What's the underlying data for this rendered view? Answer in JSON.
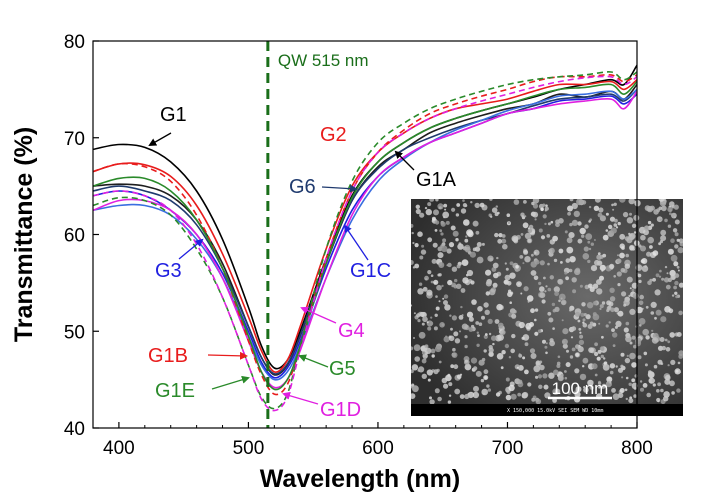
{
  "chart_data": {
    "type": "line",
    "title": "",
    "xlabel": "Wavelength (nm)",
    "ylabel": "Transmittance (%)",
    "xlim": [
      380,
      800
    ],
    "ylim": [
      40,
      80
    ],
    "x_ticks": [
      400,
      500,
      600,
      700,
      800
    ],
    "y_ticks": [
      40,
      50,
      60,
      70,
      80
    ],
    "grid": false,
    "legend": "none",
    "reference_line": {
      "x": 515,
      "label": "QW 515 nm",
      "color": "#1a6e1a",
      "style": "dashed"
    },
    "series": [
      {
        "name": "G1",
        "color": "#000000",
        "dashed": false,
        "x": [
          380,
          400,
          420,
          440,
          460,
          480,
          500,
          510,
          520,
          530,
          540,
          560,
          580,
          600,
          620,
          640,
          660,
          680,
          700,
          720,
          740,
          760,
          780,
          790,
          800
        ],
        "y": [
          68.8,
          69.3,
          69.0,
          67.5,
          64.5,
          59.5,
          52.5,
          48.5,
          46.2,
          47.0,
          50.0,
          57.5,
          64.0,
          67.5,
          69.5,
          71.0,
          72.0,
          72.8,
          73.5,
          74.2,
          75.0,
          75.5,
          76.0,
          75.5,
          77.5
        ]
      },
      {
        "name": "G2",
        "color": "#e81c1c",
        "dashed": false,
        "x": [
          380,
          400,
          420,
          440,
          460,
          480,
          500,
          510,
          520,
          530,
          540,
          560,
          580,
          600,
          620,
          640,
          660,
          680,
          700,
          720,
          740,
          760,
          780,
          790,
          800
        ],
        "y": [
          66.5,
          67.3,
          67.2,
          66.0,
          63.0,
          58.0,
          51.5,
          48.0,
          45.8,
          47.0,
          50.5,
          58.5,
          65.0,
          68.5,
          70.5,
          72.0,
          73.0,
          73.5,
          74.0,
          74.8,
          75.5,
          75.5,
          75.8,
          75.0,
          76.0
        ]
      },
      {
        "name": "G1A",
        "color": "#1e1e1e",
        "dashed": false,
        "x": [
          380,
          400,
          420,
          440,
          460,
          480,
          500,
          510,
          520,
          530,
          540,
          560,
          580,
          600,
          620,
          640,
          660,
          680,
          700,
          720,
          740,
          760,
          780,
          790,
          800
        ],
        "y": [
          65.0,
          65.2,
          65.0,
          64.0,
          61.5,
          57.0,
          50.5,
          47.3,
          45.5,
          46.5,
          49.5,
          57.0,
          63.5,
          67.0,
          68.8,
          70.5,
          71.5,
          72.3,
          73.0,
          73.5,
          74.5,
          74.2,
          74.8,
          74.0,
          75.5
        ]
      },
      {
        "name": "G6",
        "color": "#1f3a6e",
        "dashed": false,
        "x": [
          380,
          400,
          420,
          440,
          460,
          480,
          500,
          510,
          520,
          530,
          540,
          560,
          580,
          600,
          620,
          640,
          660,
          680,
          700,
          720,
          740,
          760,
          780,
          790,
          800
        ],
        "y": [
          64.5,
          65.0,
          64.5,
          63.5,
          61.0,
          56.5,
          50.5,
          47.3,
          45.6,
          46.6,
          49.6,
          57.2,
          63.5,
          66.8,
          68.8,
          70.0,
          71.0,
          71.8,
          72.5,
          73.3,
          74.0,
          74.2,
          74.5,
          73.8,
          75.0
        ]
      },
      {
        "name": "G3",
        "color": "#2020e0",
        "dashed": false,
        "x": [
          380,
          400,
          420,
          440,
          460,
          480,
          500,
          510,
          520,
          530,
          540,
          560,
          580,
          600,
          620,
          640,
          660,
          680,
          700,
          720,
          740,
          760,
          780,
          790,
          800
        ],
        "y": [
          64.0,
          64.5,
          64.0,
          62.5,
          60.0,
          56.0,
          50.0,
          46.8,
          45.2,
          46.2,
          49.0,
          56.5,
          62.5,
          66.0,
          68.0,
          69.5,
          70.5,
          71.5,
          72.5,
          73.0,
          73.8,
          74.0,
          74.3,
          73.5,
          74.5
        ]
      },
      {
        "name": "G1C",
        "color": "#3a6ee0",
        "dashed": false,
        "x": [
          380,
          400,
          420,
          440,
          460,
          480,
          500,
          510,
          520,
          530,
          540,
          560,
          580,
          600,
          620,
          640,
          660,
          680,
          700,
          720,
          740,
          760,
          780,
          790,
          800
        ],
        "y": [
          62.5,
          63.0,
          63.0,
          62.0,
          59.5,
          55.5,
          49.5,
          46.5,
          45.0,
          45.8,
          48.5,
          55.5,
          61.5,
          65.5,
          67.8,
          69.5,
          70.8,
          71.8,
          72.8,
          73.5,
          74.3,
          74.5,
          74.8,
          74.0,
          75.0
        ]
      },
      {
        "name": "G4",
        "color": "#e020e0",
        "dashed": false,
        "x": [
          380,
          400,
          420,
          440,
          460,
          480,
          500,
          510,
          520,
          530,
          540,
          560,
          580,
          600,
          620,
          640,
          660,
          680,
          700,
          720,
          740,
          760,
          780,
          790,
          800
        ],
        "y": [
          62.5,
          63.5,
          63.5,
          62.5,
          60.0,
          55.5,
          49.0,
          45.8,
          44.2,
          45.0,
          48.0,
          55.5,
          62.0,
          66.0,
          68.0,
          69.5,
          70.5,
          71.5,
          72.5,
          73.0,
          73.5,
          73.8,
          74.0,
          73.0,
          74.8
        ]
      },
      {
        "name": "G1B",
        "color": "#e81c1c",
        "dashed": true,
        "x": [
          380,
          400,
          420,
          440,
          460,
          480,
          500,
          510,
          520,
          530,
          540,
          560,
          580,
          600,
          620,
          640,
          660,
          680,
          700,
          720,
          740,
          760,
          780,
          790,
          800
        ],
        "y": [
          66.5,
          67.3,
          67.0,
          65.5,
          62.0,
          56.5,
          49.0,
          45.5,
          43.5,
          44.5,
          48.5,
          57.5,
          64.5,
          68.5,
          70.8,
          72.5,
          73.5,
          74.3,
          75.0,
          75.8,
          76.3,
          76.3,
          76.5,
          75.8,
          76.5
        ]
      },
      {
        "name": "G5",
        "color": "#2a8a2a",
        "dashed": false,
        "x": [
          380,
          400,
          420,
          440,
          460,
          480,
          500,
          510,
          520,
          530,
          540,
          560,
          580,
          600,
          620,
          640,
          660,
          680,
          700,
          720,
          740,
          760,
          780,
          790,
          800
        ],
        "y": [
          65.0,
          65.8,
          65.8,
          64.5,
          61.5,
          56.5,
          49.5,
          45.8,
          44.0,
          45.0,
          48.5,
          57.0,
          63.8,
          67.5,
          69.5,
          71.0,
          72.0,
          72.8,
          73.5,
          74.3,
          75.0,
          75.2,
          75.5,
          74.5,
          75.8
        ]
      },
      {
        "name": "G1E",
        "color": "#2a8a2a",
        "dashed": true,
        "x": [
          380,
          400,
          420,
          440,
          460,
          480,
          500,
          510,
          520,
          530,
          540,
          560,
          580,
          600,
          620,
          640,
          660,
          680,
          700,
          720,
          740,
          760,
          780,
          790,
          800
        ],
        "y": [
          63.0,
          63.8,
          63.5,
          62.0,
          58.5,
          53.5,
          46.5,
          43.2,
          42.0,
          43.5,
          48.5,
          58.5,
          65.5,
          69.5,
          71.5,
          73.0,
          74.0,
          74.8,
          75.5,
          76.0,
          76.3,
          76.5,
          76.8,
          76.0,
          76.8
        ]
      },
      {
        "name": "G1D",
        "color": "#e020e0",
        "dashed": true,
        "x": [
          380,
          400,
          420,
          440,
          460,
          480,
          500,
          510,
          520,
          530,
          540,
          560,
          580,
          600,
          620,
          640,
          660,
          680,
          700,
          720,
          740,
          760,
          780,
          790,
          800
        ],
        "y": [
          64.0,
          64.5,
          64.0,
          62.5,
          59.0,
          53.5,
          46.5,
          43.0,
          41.8,
          43.2,
          48.0,
          57.5,
          64.5,
          68.5,
          70.5,
          72.0,
          73.0,
          73.8,
          74.5,
          75.2,
          75.8,
          76.2,
          76.3,
          75.5,
          76.3
        ]
      }
    ],
    "annotations": [
      {
        "text": "G1",
        "series": "G1",
        "color": "#000000",
        "arrow": true
      },
      {
        "text": "G2",
        "series": "G2",
        "color": "#e81c1c",
        "arrow": false
      },
      {
        "text": "G1A",
        "series": "G1A",
        "color": "#000000",
        "arrow": true
      },
      {
        "text": "G6",
        "series": "G6",
        "color": "#1f3a6e",
        "arrow": true
      },
      {
        "text": "G3",
        "series": "G3",
        "color": "#2020e0",
        "arrow": true
      },
      {
        "text": "G1C",
        "series": "G1C",
        "color": "#2020e0",
        "arrow": true
      },
      {
        "text": "G4",
        "series": "G4",
        "color": "#e020e0",
        "arrow": true
      },
      {
        "text": "G1B",
        "series": "G1B",
        "color": "#e81c1c",
        "arrow": true
      },
      {
        "text": "G5",
        "series": "G5",
        "color": "#2a8a2a",
        "arrow": true
      },
      {
        "text": "G1E",
        "series": "G1E",
        "color": "#2a8a2a",
        "arrow": true
      },
      {
        "text": "G1D",
        "series": "G1D",
        "color": "#e020e0",
        "arrow": true
      }
    ],
    "inset": {
      "type": "sem-micrograph",
      "scale_bar_label": "100 nm",
      "footer_text": "X 150,000   15.0kV SEI   SEM   WD 10mm"
    }
  }
}
